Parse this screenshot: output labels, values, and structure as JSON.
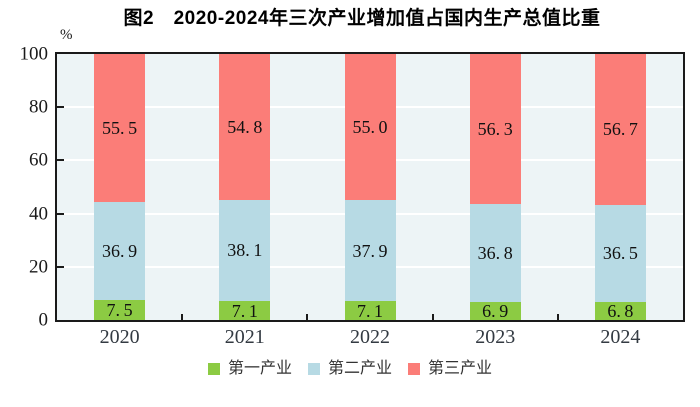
{
  "figure": {
    "background": "#ffffff"
  },
  "chart_data": {
    "type": "bar",
    "stacked": true,
    "title": "图2　2020-2024年三次产业增加值占国内生产总值比重",
    "unit_label": "%",
    "categories": [
      "2020",
      "2021",
      "2022",
      "2023",
      "2024"
    ],
    "series": [
      {
        "name": "第一产业",
        "color": "#8CCB43",
        "values": [
          7.5,
          7.1,
          7.1,
          6.9,
          6.8
        ]
      },
      {
        "name": "第二产业",
        "color": "#B7DAE4",
        "values": [
          36.9,
          38.1,
          37.9,
          36.8,
          36.5
        ]
      },
      {
        "name": "第三产业",
        "color": "#FB7D78",
        "values": [
          55.5,
          54.8,
          55.0,
          56.3,
          56.7
        ]
      }
    ],
    "ylabel": "",
    "xlabel": "",
    "ylim": [
      0,
      100
    ],
    "y_ticks": [
      0,
      20,
      40,
      60,
      80,
      100
    ],
    "gridlines": [
      20,
      40,
      60,
      80
    ],
    "legend_position": "bottom",
    "colors": {
      "plot_background": "#EDF4F6",
      "grid_color": "#FFFFFF",
      "axis_color": "#1A1A1A",
      "bar_label_color": "#111111",
      "tick_label_color": "#1A1A1A",
      "title_color": "#000000"
    }
  }
}
